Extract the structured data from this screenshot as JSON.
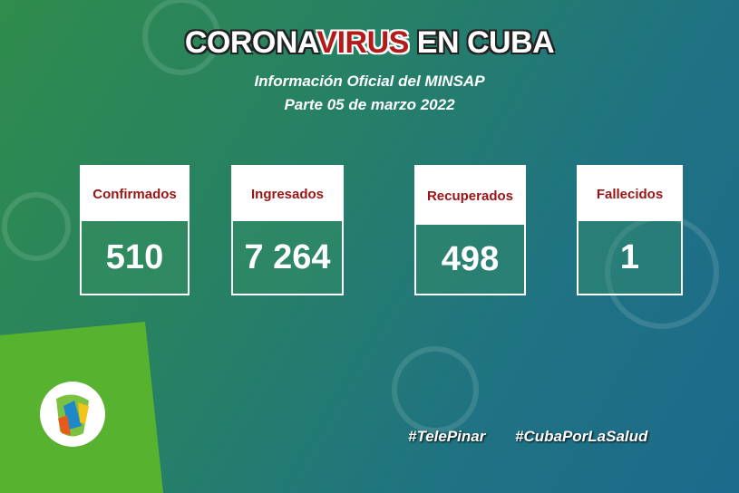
{
  "header": {
    "title_parts": [
      "CORONA",
      "VIRUS",
      " EN CUBA"
    ],
    "subtitle": "Información Oficial del MINSAP",
    "date_line": "Parte 05 de marzo 2022"
  },
  "cards": [
    {
      "label": "Confirmados",
      "value": "510"
    },
    {
      "label": "Ingresados",
      "value": "7 264"
    },
    {
      "label": "Recuperados",
      "value": "498"
    },
    {
      "label": "Fallecidos",
      "value": "1"
    }
  ],
  "hashtags": [
    "#TelePinar",
    "#CubaPorLaSalud"
  ]
}
